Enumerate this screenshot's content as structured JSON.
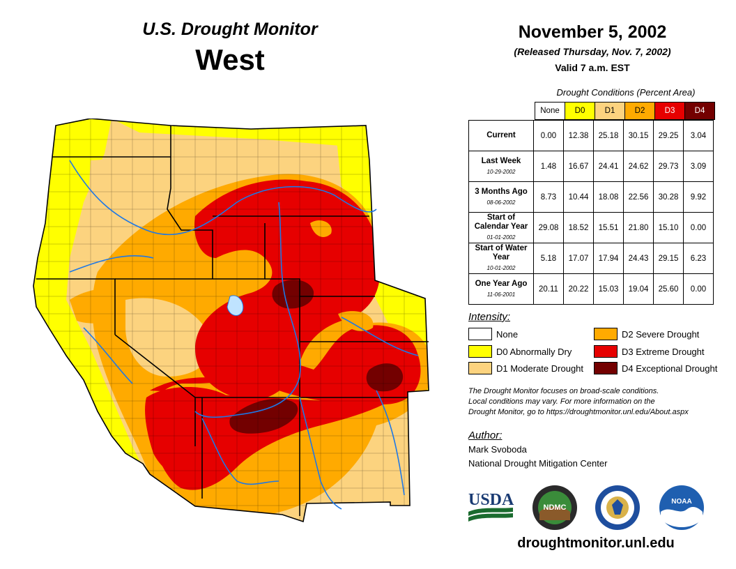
{
  "header": {
    "subtitle": "U.S. Drought Monitor",
    "region": "West",
    "date": "November 5, 2002",
    "released": "(Released Thursday, Nov. 7, 2002)",
    "valid": "Valid 7 a.m. EST"
  },
  "table": {
    "caption": "Drought Conditions (Percent Area)",
    "columns": [
      "None",
      "D0",
      "D1",
      "D2",
      "D3",
      "D4"
    ],
    "column_colors": [
      "#ffffff",
      "#ffff00",
      "#fcd37f",
      "#ffaa00",
      "#e60000",
      "#730000"
    ],
    "column_text_colors": [
      "#000000",
      "#000000",
      "#000000",
      "#000000",
      "#ffffff",
      "#ffffff"
    ],
    "rows": [
      {
        "label": "Current",
        "date": "",
        "values": [
          "0.00",
          "12.38",
          "25.18",
          "30.15",
          "29.25",
          "3.04"
        ]
      },
      {
        "label": "Last Week",
        "date": "10-29-2002",
        "values": [
          "1.48",
          "16.67",
          "24.41",
          "24.62",
          "29.73",
          "3.09"
        ]
      },
      {
        "label": "3 Months Ago",
        "date": "08-06-2002",
        "values": [
          "8.73",
          "10.44",
          "18.08",
          "22.56",
          "30.28",
          "9.92"
        ]
      },
      {
        "label": "Start of Calendar Year",
        "date": "01-01-2002",
        "values": [
          "29.08",
          "18.52",
          "15.51",
          "21.80",
          "15.10",
          "0.00"
        ]
      },
      {
        "label": "Start of Water Year",
        "date": "10-01-2002",
        "values": [
          "5.18",
          "17.07",
          "17.94",
          "24.43",
          "29.15",
          "6.23"
        ]
      },
      {
        "label": "One Year Ago",
        "date": "11-06-2001",
        "values": [
          "20.11",
          "20.22",
          "15.03",
          "19.04",
          "25.60",
          "0.00"
        ]
      }
    ]
  },
  "legend": {
    "title": "Intensity:",
    "items": [
      {
        "label": "None",
        "color": "#ffffff"
      },
      {
        "label": "D0 Abnormally Dry",
        "color": "#ffff00"
      },
      {
        "label": "D1 Moderate Drought",
        "color": "#fcd37f"
      },
      {
        "label": "D2 Severe Drought",
        "color": "#ffaa00"
      },
      {
        "label": "D3 Extreme Drought",
        "color": "#e60000"
      },
      {
        "label": "D4 Exceptional Drought",
        "color": "#730000"
      }
    ]
  },
  "note": {
    "line1": "The Drought Monitor focuses on broad-scale conditions.",
    "line2": "Local conditions may vary. For more information on the",
    "line3": "Drought Monitor, go to https://droughtmonitor.unl.edu/About.aspx"
  },
  "author": {
    "label": "Author:",
    "name": "Mark Svoboda",
    "org": "National Drought Mitigation Center"
  },
  "logos": {
    "usda": "USDA",
    "ndmc": "NDMC",
    "noaa": "NOAA"
  },
  "footer_url": "droughtmonitor.unl.edu"
}
